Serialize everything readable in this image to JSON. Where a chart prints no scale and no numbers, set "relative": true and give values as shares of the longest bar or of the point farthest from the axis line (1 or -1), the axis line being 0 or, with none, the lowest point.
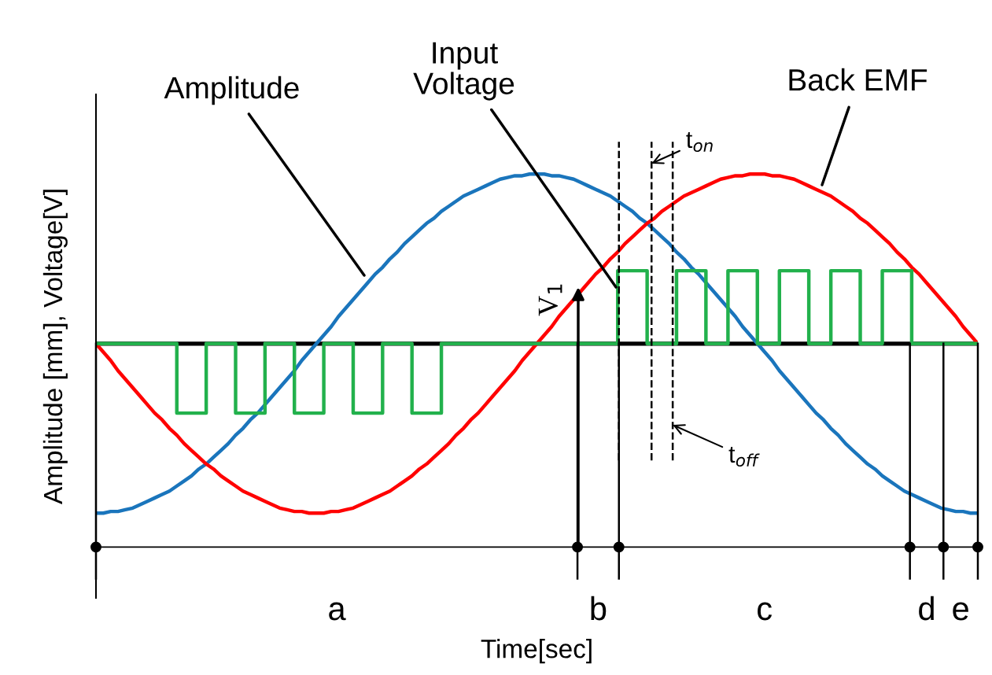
{
  "chart_data": {
    "type": "line",
    "relative": true,
    "xlabel": "Time[sec]",
    "ylabel": "Amplitude [mm], Voltage[V]",
    "grid": false,
    "marker": "none",
    "line_style": "solid",
    "categories": [
      null,
      null,
      null,
      null,
      null,
      null,
      null,
      null,
      null,
      null,
      null,
      null,
      null,
      null,
      null,
      null,
      null,
      null,
      null,
      null,
      null,
      null,
      null,
      null,
      null,
      null,
      null,
      null,
      null,
      null,
      null,
      null,
      null,
      null,
      null,
      null,
      null,
      null,
      null,
      null,
      null,
      null,
      null,
      null,
      null,
      null,
      null,
      null,
      null,
      null,
      null,
      null,
      null,
      null,
      null,
      null,
      null,
      null,
      null,
      null,
      null,
      null,
      null,
      null,
      null,
      null,
      null,
      null,
      null,
      null,
      null,
      null,
      null,
      null,
      null,
      null,
      null,
      null,
      null,
      null,
      null,
      null,
      null,
      null,
      null,
      null,
      null,
      null,
      null,
      null,
      null,
      null,
      null,
      null,
      null,
      null,
      null,
      null,
      null,
      null,
      null,
      null,
      null,
      null,
      null,
      null,
      null,
      null,
      null,
      null,
      null,
      null,
      null,
      null,
      null,
      null,
      null,
      null,
      null,
      null,
      null
    ],
    "series": [
      {
        "color": "#1a75bc",
        "values": [
          -1,
          -1,
          -0.99,
          -0.99,
          -0.98,
          -0.97,
          -0.95,
          -0.93,
          -0.91,
          -0.89,
          -0.87,
          -0.84,
          -0.81,
          -0.78,
          -0.74,
          -0.71,
          -0.67,
          -0.63,
          -0.59,
          -0.54,
          -0.5,
          -0.45,
          -0.41,
          -0.36,
          -0.31,
          -0.26,
          -0.21,
          -0.16,
          -0.1,
          -0.05,
          0,
          0.05,
          0.1,
          0.16,
          0.21,
          0.26,
          0.31,
          0.36,
          0.41,
          0.45,
          0.5,
          0.54,
          0.59,
          0.63,
          0.67,
          0.71,
          0.74,
          0.78,
          0.81,
          0.84,
          0.87,
          0.89,
          0.91,
          0.93,
          0.95,
          0.97,
          0.98,
          0.99,
          0.99,
          1,
          1,
          1,
          0.99,
          0.99,
          0.98,
          0.97,
          0.95,
          0.93,
          0.91,
          0.89,
          0.87,
          0.84,
          0.81,
          0.78,
          0.74,
          0.71,
          0.67,
          0.63,
          0.59,
          0.54,
          0.5,
          0.45,
          0.41,
          0.36,
          0.31,
          0.26,
          0.21,
          0.16,
          0.1,
          0.05,
          0,
          -0.05,
          -0.1,
          -0.16,
          -0.21,
          -0.26,
          -0.31,
          -0.36,
          -0.41,
          -0.45,
          -0.5,
          -0.54,
          -0.59,
          -0.63,
          -0.67,
          -0.71,
          -0.74,
          -0.78,
          -0.81,
          -0.84,
          -0.87,
          -0.89,
          -0.91,
          -0.93,
          -0.95,
          -0.97,
          -0.98,
          -0.99,
          -0.99,
          -1,
          -1
        ]
      },
      {
        "color": "#ff0000",
        "values": [
          0,
          -0.05,
          -0.1,
          -0.16,
          -0.21,
          -0.26,
          -0.31,
          -0.36,
          -0.41,
          -0.45,
          -0.5,
          -0.54,
          -0.59,
          -0.63,
          -0.67,
          -0.71,
          -0.74,
          -0.78,
          -0.81,
          -0.84,
          -0.87,
          -0.89,
          -0.91,
          -0.93,
          -0.95,
          -0.97,
          -0.98,
          -0.99,
          -0.99,
          -1,
          -1,
          -1,
          -0.99,
          -0.99,
          -0.98,
          -0.97,
          -0.95,
          -0.93,
          -0.91,
          -0.89,
          -0.87,
          -0.84,
          -0.81,
          -0.78,
          -0.74,
          -0.71,
          -0.67,
          -0.63,
          -0.59,
          -0.54,
          -0.5,
          -0.45,
          -0.41,
          -0.36,
          -0.31,
          -0.26,
          -0.21,
          -0.16,
          -0.1,
          -0.05,
          0,
          0.05,
          0.1,
          0.16,
          0.21,
          0.26,
          0.31,
          0.36,
          0.41,
          0.45,
          0.5,
          0.54,
          0.59,
          0.63,
          0.67,
          0.71,
          0.74,
          0.78,
          0.81,
          0.84,
          0.87,
          0.89,
          0.91,
          0.93,
          0.95,
          0.97,
          0.98,
          0.99,
          0.99,
          1,
          1,
          1,
          0.99,
          0.99,
          0.98,
          0.97,
          0.95,
          0.93,
          0.91,
          0.89,
          0.87,
          0.84,
          0.81,
          0.78,
          0.74,
          0.71,
          0.67,
          0.63,
          0.59,
          0.54,
          0.5,
          0.45,
          0.41,
          0.36,
          0.31,
          0.26,
          0.21,
          0.16,
          0.1,
          0.05,
          0
        ]
      },
      {
        "type": "step",
        "color": "#22b14c",
        "values": [
          0,
          0,
          0,
          0,
          0,
          0,
          0,
          0,
          0,
          0,
          0,
          -0.41,
          -0.41,
          -0.41,
          -0.41,
          0,
          0,
          0,
          0,
          -0.41,
          -0.41,
          -0.41,
          -0.41,
          0,
          0,
          0,
          0,
          -0.41,
          -0.41,
          -0.41,
          -0.41,
          0,
          0,
          0,
          0,
          -0.41,
          -0.41,
          -0.41,
          -0.41,
          0,
          0,
          0,
          0,
          -0.41,
          -0.41,
          -0.41,
          -0.41,
          0,
          0,
          0,
          0,
          0,
          0,
          0,
          0,
          0,
          0,
          0,
          0,
          0,
          0,
          0,
          0,
          0,
          0,
          0,
          0,
          0,
          0,
          0,
          0,
          0.43,
          0.43,
          0.43,
          0.43,
          0,
          0,
          0,
          0,
          0.43,
          0.43,
          0.43,
          0.43,
          0,
          0,
          0,
          0.43,
          0.43,
          0.43,
          0.43,
          0,
          0,
          0,
          0.43,
          0.43,
          0.43,
          0.43,
          0,
          0,
          0,
          0.43,
          0.43,
          0.43,
          0.43,
          0,
          0,
          0,
          0.43,
          0.43,
          0.43,
          0.43,
          0,
          0,
          0,
          0,
          0,
          0,
          0,
          0,
          0,
          0
        ]
      }
    ],
    "annotations": [
      "Amplitude",
      "Input\nVoltage",
      "Back EMF",
      "V$_{1}$",
      "t$_{on}$",
      "t$_{off}$",
      "a",
      "b",
      "c",
      "d",
      "e"
    ]
  }
}
